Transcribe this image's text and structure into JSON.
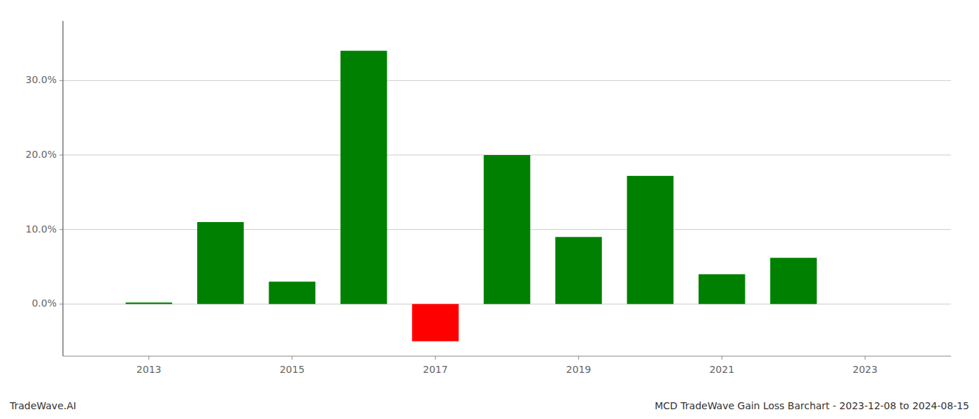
{
  "chart_data": {
    "type": "bar",
    "title": "MCD TradeWave Gain Loss Barchart - 2023-12-08 to 2024-08-15",
    "annotations": [
      "TradeWave.AI"
    ],
    "x": [
      2013,
      2014,
      2015,
      2016,
      2017,
      2018,
      2019,
      2020,
      2021,
      2022
    ],
    "values": [
      0.2,
      11.0,
      3.0,
      34.0,
      -5.0,
      20.0,
      9.0,
      17.2,
      4.0,
      6.2
    ],
    "colors": [
      "#008000",
      "#008000",
      "#008000",
      "#008000",
      "#ff0000",
      "#008000",
      "#008000",
      "#008000",
      "#008000",
      "#008000"
    ],
    "xlim": [
      2011.8,
      2024.2
    ],
    "ylim": [
      -7,
      38
    ],
    "xticks": [
      2013,
      2015,
      2017,
      2019,
      2021,
      2023
    ],
    "yticks": [
      {
        "value": 0,
        "label": "0.0%"
      },
      {
        "value": 10,
        "label": "10.0%"
      },
      {
        "value": 20,
        "label": "20.0%"
      },
      {
        "value": 30,
        "label": "30.0%"
      }
    ],
    "grid": true
  }
}
